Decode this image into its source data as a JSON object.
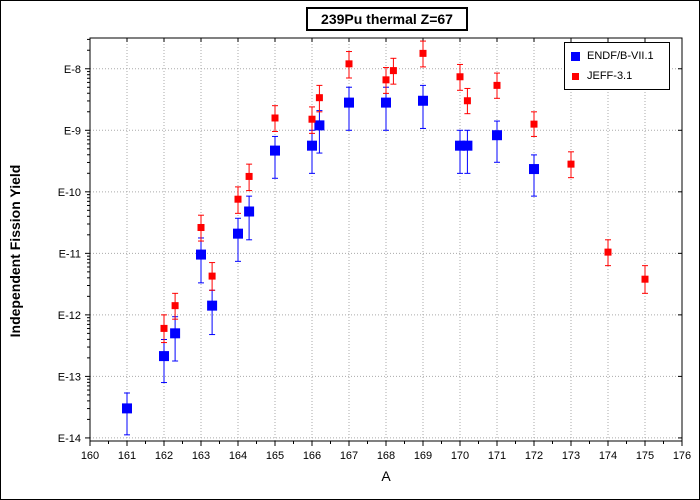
{
  "chart_data": {
    "type": "scatter",
    "title": "239Pu thermal Z=67",
    "xlabel": "A",
    "ylabel": "Independent Fission Yield",
    "xlim": [
      160,
      176
    ],
    "ylim_log10": [
      -14.05,
      -7.5
    ],
    "yscale": "log",
    "x_ticks": [
      160,
      161,
      162,
      163,
      164,
      165,
      166,
      167,
      168,
      169,
      170,
      171,
      172,
      173,
      174,
      175,
      176
    ],
    "x_tick_labels": [
      "160",
      "161",
      "162",
      "163",
      "164",
      "165",
      "166",
      "167",
      "168",
      "169",
      "170",
      "171",
      "172",
      "173",
      "174",
      "175",
      "176"
    ],
    "y_ticks_log10": [
      -14,
      -13,
      -12,
      -11,
      -10,
      -9,
      -8
    ],
    "y_tick_labels": [
      "E-14",
      "E-13",
      "E-12",
      "E-11",
      "E-10",
      "E-9",
      "E-8"
    ],
    "grid": true,
    "legend_position": "top-right",
    "series": [
      {
        "name": "ENDF/B-VII.1",
        "color": "#0000ff",
        "marker": "square-large",
        "points": [
          {
            "x": 161,
            "y_log10": -13.52,
            "err_lo": -13.95,
            "err_hi": -13.27
          },
          {
            "x": 162,
            "y_log10": -12.67,
            "err_lo": -13.1,
            "err_hi": -12.4
          },
          {
            "x": 162.3,
            "y_log10": -12.3,
            "err_lo": -12.75,
            "err_hi": -12.03
          },
          {
            "x": 163,
            "y_log10": -11.02,
            "err_lo": -11.48,
            "err_hi": -10.75
          },
          {
            "x": 163.3,
            "y_log10": -11.85,
            "err_lo": -12.32,
            "err_hi": -11.6
          },
          {
            "x": 164,
            "y_log10": -10.68,
            "err_lo": -11.13,
            "err_hi": -10.43
          },
          {
            "x": 164.3,
            "y_log10": -10.32,
            "err_lo": -10.78,
            "err_hi": -10.07
          },
          {
            "x": 165,
            "y_log10": -9.33,
            "err_lo": -9.78,
            "err_hi": -9.1
          },
          {
            "x": 166,
            "y_log10": -9.25,
            "err_lo": -9.7,
            "err_hi": -9.0
          },
          {
            "x": 166.2,
            "y_log10": -8.92,
            "err_lo": -9.37,
            "err_hi": -8.68
          },
          {
            "x": 167,
            "y_log10": -8.55,
            "err_lo": -9.0,
            "err_hi": -8.3
          },
          {
            "x": 168,
            "y_log10": -8.55,
            "err_lo": -9.0,
            "err_hi": -8.3
          },
          {
            "x": 169,
            "y_log10": -8.52,
            "err_lo": -8.97,
            "err_hi": -8.27
          },
          {
            "x": 170,
            "y_log10": -9.25,
            "err_lo": -9.7,
            "err_hi": -9.0
          },
          {
            "x": 170.2,
            "y_log10": -9.25,
            "err_lo": -9.7,
            "err_hi": -9.0
          },
          {
            "x": 171,
            "y_log10": -9.08,
            "err_lo": -9.52,
            "err_hi": -8.85
          },
          {
            "x": 172,
            "y_log10": -9.63,
            "err_lo": -10.07,
            "err_hi": -9.4
          }
        ]
      },
      {
        "name": "JEFF-3.1",
        "color": "#ff0000",
        "marker": "square-small",
        "points": [
          {
            "x": 162,
            "y_log10": -12.22,
            "err_lo": -12.45,
            "err_hi": -12.0
          },
          {
            "x": 162.3,
            "y_log10": -11.85,
            "err_lo": -12.07,
            "err_hi": -11.65
          },
          {
            "x": 163,
            "y_log10": -10.58,
            "err_lo": -10.8,
            "err_hi": -10.38
          },
          {
            "x": 163.3,
            "y_log10": -11.37,
            "err_lo": -11.6,
            "err_hi": -11.15
          },
          {
            "x": 164,
            "y_log10": -10.12,
            "err_lo": -10.35,
            "err_hi": -9.92
          },
          {
            "x": 164.3,
            "y_log10": -9.75,
            "err_lo": -9.98,
            "err_hi": -9.55
          },
          {
            "x": 165,
            "y_log10": -8.8,
            "err_lo": -9.02,
            "err_hi": -8.6
          },
          {
            "x": 166,
            "y_log10": -8.82,
            "err_lo": -9.05,
            "err_hi": -8.62
          },
          {
            "x": 166.2,
            "y_log10": -8.47,
            "err_lo": -8.7,
            "err_hi": -8.27
          },
          {
            "x": 167,
            "y_log10": -7.92,
            "err_lo": -8.15,
            "err_hi": -7.72
          },
          {
            "x": 168,
            "y_log10": -8.18,
            "err_lo": -8.4,
            "err_hi": -7.98
          },
          {
            "x": 168.2,
            "y_log10": -8.03,
            "err_lo": -8.25,
            "err_hi": -7.83
          },
          {
            "x": 169,
            "y_log10": -7.75,
            "err_lo": -7.97,
            "err_hi": -7.55
          },
          {
            "x": 170,
            "y_log10": -8.13,
            "err_lo": -8.35,
            "err_hi": -7.93
          },
          {
            "x": 170.2,
            "y_log10": -8.52,
            "err_lo": -8.73,
            "err_hi": -8.32
          },
          {
            "x": 171,
            "y_log10": -8.27,
            "err_lo": -8.48,
            "err_hi": -8.07
          },
          {
            "x": 172,
            "y_log10": -8.9,
            "err_lo": -9.1,
            "err_hi": -8.7
          },
          {
            "x": 173,
            "y_log10": -9.55,
            "err_lo": -9.77,
            "err_hi": -9.35
          },
          {
            "x": 174,
            "y_log10": -10.98,
            "err_lo": -11.2,
            "err_hi": -10.78
          },
          {
            "x": 175,
            "y_log10": -11.42,
            "err_lo": -11.65,
            "err_hi": -11.2
          }
        ]
      }
    ]
  }
}
